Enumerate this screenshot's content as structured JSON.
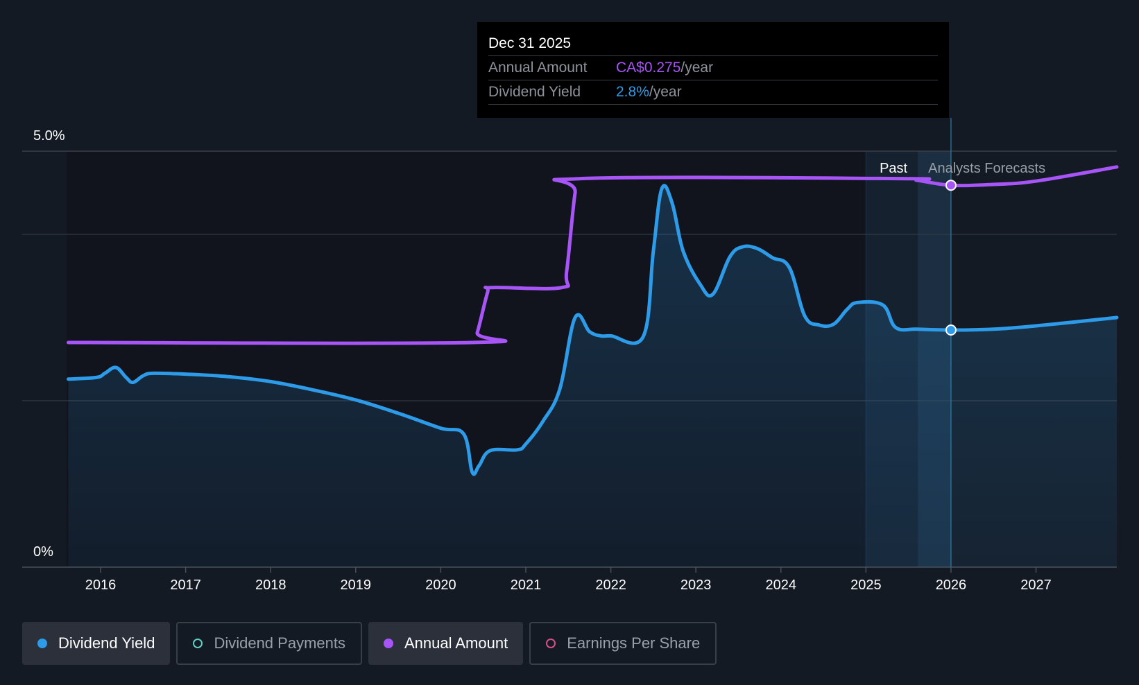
{
  "tooltip": {
    "date": "Dec 31 2025",
    "annual_label": "Annual Amount",
    "annual_value": "CA$0.275",
    "annual_unit": "/year",
    "yield_label": "Dividend Yield",
    "yield_value": "2.8%",
    "yield_unit": "/year"
  },
  "legend": {
    "dividend_yield": "Dividend Yield",
    "dividend_payments": "Dividend Payments",
    "annual_amount": "Annual Amount",
    "earnings_per_share": "Earnings Per Share"
  },
  "colors": {
    "background": "#141a24",
    "yield_line": "#2d9be8",
    "annual_line": "#a855f7",
    "grid": "#3a3f47",
    "axis_text": "#ffffff"
  },
  "chart_data": {
    "type": "line",
    "y_axis_labels": [
      "5.0%",
      "0%"
    ],
    "ylim": [
      0,
      5.0
    ],
    "xlim": [
      2015.6,
      2027.95
    ],
    "x_ticks": [
      "2016",
      "2017",
      "2018",
      "2019",
      "2020",
      "2021",
      "2022",
      "2023",
      "2024",
      "2025",
      "2026",
      "2027"
    ],
    "x_tick_values": [
      2016,
      2017,
      2018,
      2019,
      2020,
      2021,
      2022,
      2023,
      2024,
      2025,
      2026,
      2027
    ],
    "past_label": "Past",
    "forecast_label": "Analysts Forecasts",
    "past_region_start": 2025.0,
    "forecast_start": 2025.61,
    "marker_x": 2026.0,
    "series": [
      {
        "name": "Dividend Yield",
        "unit": "%",
        "points": [
          [
            2015.62,
            2.26
          ],
          [
            2015.95,
            2.28
          ],
          [
            2016.05,
            2.33
          ],
          [
            2016.18,
            2.4
          ],
          [
            2016.3,
            2.28
          ],
          [
            2016.38,
            2.22
          ],
          [
            2016.5,
            2.3
          ],
          [
            2016.62,
            2.33
          ],
          [
            2017.0,
            2.32
          ],
          [
            2017.5,
            2.29
          ],
          [
            2018.0,
            2.23
          ],
          [
            2018.5,
            2.13
          ],
          [
            2019.0,
            2.01
          ],
          [
            2019.5,
            1.85
          ],
          [
            2020.0,
            1.67
          ],
          [
            2020.27,
            1.6
          ],
          [
            2020.37,
            1.14
          ],
          [
            2020.45,
            1.22
          ],
          [
            2020.58,
            1.4
          ],
          [
            2020.9,
            1.41
          ],
          [
            2021.0,
            1.48
          ],
          [
            2021.2,
            1.75
          ],
          [
            2021.4,
            2.14
          ],
          [
            2021.58,
            3.0
          ],
          [
            2021.75,
            2.83
          ],
          [
            2021.88,
            2.78
          ],
          [
            2022.0,
            2.78
          ],
          [
            2022.38,
            2.77
          ],
          [
            2022.5,
            3.8
          ],
          [
            2022.6,
            4.55
          ],
          [
            2022.72,
            4.38
          ],
          [
            2022.85,
            3.8
          ],
          [
            2023.05,
            3.4
          ],
          [
            2023.2,
            3.28
          ],
          [
            2023.4,
            3.73
          ],
          [
            2023.55,
            3.85
          ],
          [
            2023.72,
            3.83
          ],
          [
            2023.9,
            3.72
          ],
          [
            2024.1,
            3.6
          ],
          [
            2024.28,
            3.02
          ],
          [
            2024.45,
            2.91
          ],
          [
            2024.62,
            2.92
          ],
          [
            2024.78,
            3.1
          ],
          [
            2024.9,
            3.18
          ],
          [
            2025.2,
            3.15
          ],
          [
            2025.35,
            2.88
          ],
          [
            2025.6,
            2.86
          ],
          [
            2026.0,
            2.85
          ],
          [
            2026.5,
            2.86
          ],
          [
            2027.0,
            2.9
          ],
          [
            2027.95,
            3.0
          ]
        ]
      },
      {
        "name": "Annual Amount",
        "points": [
          [
            2015.62,
            2.7
          ],
          [
            2020.37,
            2.7
          ],
          [
            2020.43,
            2.82
          ],
          [
            2020.55,
            3.3
          ],
          [
            2020.6,
            3.36
          ],
          [
            2021.42,
            3.36
          ],
          [
            2021.48,
            3.55
          ],
          [
            2021.58,
            4.5
          ],
          [
            2021.65,
            4.67
          ],
          [
            2025.4,
            4.67
          ],
          [
            2025.6,
            4.65
          ],
          [
            2026.0,
            4.59
          ],
          [
            2026.5,
            4.6
          ],
          [
            2027.0,
            4.64
          ],
          [
            2027.95,
            4.81
          ]
        ]
      }
    ]
  }
}
